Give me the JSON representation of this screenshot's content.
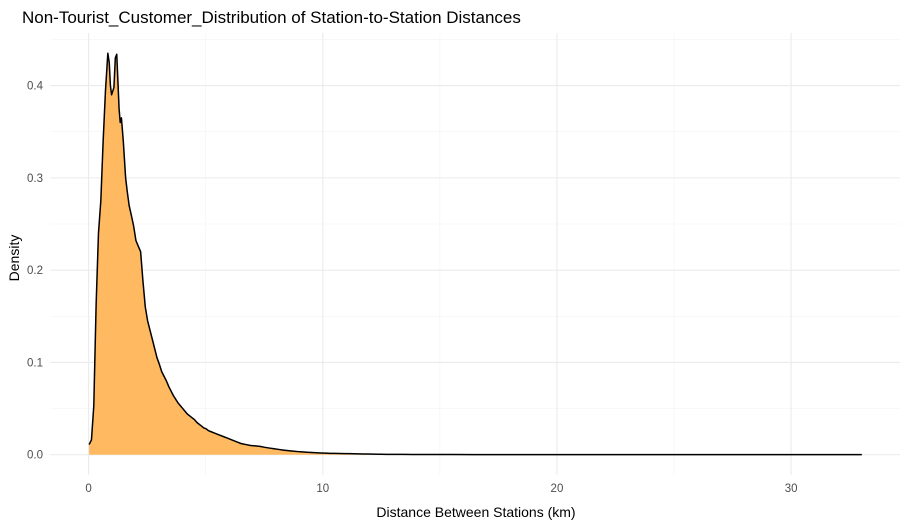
{
  "chart_data": {
    "type": "area",
    "title": "Non-Tourist_Customer_Distribution of Station-to-Station Distances",
    "xlabel": "Distance Between Stations (km)",
    "ylabel": "Density",
    "xlim": [
      -1.65,
      34.65
    ],
    "ylim": [
      -0.022,
      0.457
    ],
    "x_ticks": [
      0,
      10,
      20,
      30
    ],
    "x_tick_labels": [
      "0",
      "10",
      "20",
      "30"
    ],
    "y_ticks": [
      0.0,
      0.1,
      0.2,
      0.3,
      0.4
    ],
    "y_tick_labels": [
      "0.0",
      "0.1",
      "0.2",
      "0.3",
      "0.4"
    ],
    "grid": true,
    "legend": "none",
    "fill_color": "#ffb961",
    "line_color": "#000000",
    "series": [
      {
        "x": [
          0.02,
          0.12,
          0.22,
          0.32,
          0.42,
          0.52,
          0.62,
          0.72,
          0.82,
          0.88,
          0.93,
          0.98,
          1.08,
          1.14,
          1.2,
          1.25,
          1.3,
          1.35,
          1.4,
          1.48,
          1.53,
          1.58,
          1.65,
          1.73,
          1.82,
          1.92,
          2.02,
          2.12,
          2.22,
          2.32,
          2.42,
          2.52,
          2.62,
          2.72,
          2.82,
          2.92,
          3.02,
          3.12,
          3.22,
          3.32,
          3.42,
          3.52,
          3.62,
          3.72,
          3.82,
          3.92,
          4.02,
          4.12,
          4.22,
          4.32,
          4.42,
          4.52,
          4.62,
          4.72,
          4.82,
          4.92,
          5.02,
          5.12,
          5.22,
          5.32,
          5.52,
          5.72,
          5.92,
          6.12,
          6.32,
          6.52,
          6.72,
          6.92,
          7.12,
          7.32,
          7.52,
          7.72,
          7.92,
          8.12,
          8.32,
          8.52,
          8.72,
          8.92,
          9.12,
          9.32,
          9.52,
          9.72,
          9.92,
          10.12,
          10.32,
          10.52,
          10.72,
          10.92,
          11.12,
          11.32,
          11.52,
          11.72,
          11.92,
          12.12,
          12.42,
          12.72,
          13.02,
          13.42,
          13.82,
          14.32,
          14.82,
          15.52,
          16.52,
          18.02,
          20.02,
          23.02,
          26.02,
          29.02,
          31.02,
          33.02
        ],
        "y": [
          0.011,
          0.016,
          0.053,
          0.163,
          0.24,
          0.275,
          0.34,
          0.395,
          0.435,
          0.425,
          0.4,
          0.39,
          0.398,
          0.43,
          0.434,
          0.405,
          0.375,
          0.36,
          0.365,
          0.34,
          0.32,
          0.3,
          0.285,
          0.27,
          0.26,
          0.248,
          0.232,
          0.226,
          0.22,
          0.188,
          0.16,
          0.145,
          0.135,
          0.125,
          0.115,
          0.105,
          0.098,
          0.09,
          0.085,
          0.08,
          0.074,
          0.069,
          0.064,
          0.06,
          0.056,
          0.053,
          0.05,
          0.047,
          0.044,
          0.042,
          0.04,
          0.038,
          0.035,
          0.033,
          0.031,
          0.029,
          0.028,
          0.026,
          0.025,
          0.024,
          0.022,
          0.02,
          0.018,
          0.016,
          0.014,
          0.012,
          0.011,
          0.01,
          0.0095,
          0.009,
          0.008,
          0.0072,
          0.0064,
          0.0057,
          0.005,
          0.0044,
          0.0039,
          0.0034,
          0.003,
          0.0027,
          0.0024,
          0.0021,
          0.0019,
          0.0017,
          0.0015,
          0.0014,
          0.0013,
          0.0012,
          0.0011,
          0.001,
          0.0009,
          0.0008,
          0.0007,
          0.0006,
          0.0005,
          0.0004,
          0.00035,
          0.0003,
          0.00025,
          0.0002,
          0.00018,
          0.00015,
          0.00012,
          0.0001,
          8e-05,
          6e-05,
          5e-05,
          4e-05,
          3e-05,
          2e-05
        ]
      }
    ]
  }
}
